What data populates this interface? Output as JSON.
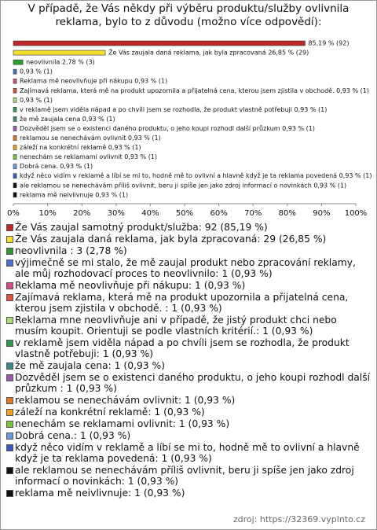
{
  "chart_data": {
    "type": "hbar",
    "title": "V případě, že Vás někdy při výběru produktu/služby ovlivnila reklama, bylo to z důvodu (možno více odpovědí):",
    "categories": [
      "Že Vás zaujal samotný produkt/služba: 92 (85,19 %)",
      "Že Vás zaujala daná reklama, jak byla zpracovaná: 29 (26,85 %)",
      "neovlivnila : 3 (2,78 %)",
      "výjimečně se mi stalo, že mě zaujal produkt nebo zpracování reklamy, ale můj rozhodovací proces to neovlivnilo: 1 (0,93 %)",
      "Reklama mě neovlivňuje při nákupu: 1 (0,93 %)",
      "Zajímavá reklama, která mě na produkt upozornila a přijatelná cena, kterou jsem zjistila v obchodě. : 1 (0,93 %)",
      "Reklama mne neovlivňuje ani v případě, že jistý produkt chci nebo musím koupit. Orientuji se podle vlastních kritérií.: 1 (0,93 %)",
      "v reklamě jsem viděla nápad a po chvíli jsem se rozhodla, že produkt vlastně potřebuji: 1 (0,93 %)",
      "že mě zaujala cena: 1 (0,93 %)",
      "Dozvěděl jsem se o existenci daného produktu, o jeho koupi rozhodl další průzkum : 1 (0,93 %)",
      "reklamou se nenechávám ovlivnit: 1 (0,93 %)",
      "záleží na konkrétní reklamě: 1 (0,93 %)",
      "nenechám se reklamami ovlivnit: 1 (0,93 %)",
      "Dobrá cena.: 1 (0,93 %)",
      "když něco vidím v reklamě a líbí se mi to, hodně mě to ovlivní a hlavně když je ta reklama povedená: 1 (0,93 %)",
      "ale reklamou se nenechávám příliš ovlivnit, beru ji spíše jen jako zdroj informací o novinkách: 1 (0,93 %)",
      "reklama mě neivlivnuje: 1 (0,93 %)"
    ],
    "values": [
      85.19,
      26.85,
      2.78,
      0.93,
      0.93,
      0.93,
      0.93,
      0.93,
      0.93,
      0.93,
      0.93,
      0.93,
      0.93,
      0.93,
      0.93,
      0.93,
      0.93
    ],
    "value_labels": [
      "85,19 % (92)",
      "Že Vás zaujala daná reklama, jak byla zpracovaná 26,85 % (29)",
      "neovlivnila  2,78 % (3)",
      "0,93 % (1)",
      "Reklama mě neovlivňuje při nákupu 0,93 % (1)",
      "Zajímavá reklama, která mě na produkt upozornila a přijatelná cena, kterou jsem zjistila v obchodě.  0,93 % (1)",
      "0,93 % (1)",
      "v reklamě jsem viděla nápad a po chvíli jsem se rozhodla, že produkt vlastně potřebuji 0,93 % (1)",
      "že mě zaujala cena 0,93 % (1)",
      "Dozvěděl jsem se o existenci daného produktu, o jeho koupi rozhodl další průzkum  0,93 % (1)",
      "reklamou se nenechávám ovlivnit 0,93 % (1)",
      "záleží na konkrétní reklamě 0,93 % (1)",
      "nenechám se reklamami ovlivnit 0,93 % (1)",
      "Dobrá cena.  0,93 % (1)",
      "když něco vidím v reklamě a líbí se mi to, hodně mě to ovlivní a hlavně když je ta reklama povedená 0,93 % (1)",
      "ale reklamou se nenechávám příliš ovlivnit, beru ji spíše jen jako zdroj informací o novinkách 0,93 % (1)",
      "reklama mě neivlivnuje 0,93 % (1)"
    ],
    "colors": [
      "#c0282a",
      "#f4e02c",
      "#2f9e2f",
      "#4a6ed0",
      "#d64a8a",
      "#e0503a",
      "#a8dc78",
      "#2e9a4a",
      "#3a8a8a",
      "#9a5ab0",
      "#e07a20",
      "#f0a020",
      "#7ac83a",
      "#6a9ae0",
      "#3a5ac0",
      "#111111",
      "#111111"
    ],
    "xlim": [
      0,
      100
    ],
    "xticks": [
      {
        "value": 0,
        "label": "0%"
      },
      {
        "value": 10,
        "label": "10%"
      },
      {
        "value": 20,
        "label": "20%"
      },
      {
        "value": 30,
        "label": "30%"
      },
      {
        "value": 40,
        "label": "40%"
      },
      {
        "value": 50,
        "label": "50%"
      },
      {
        "value": 60,
        "label": "60%"
      },
      {
        "value": 70,
        "label": "70%"
      },
      {
        "value": 80,
        "label": "80%"
      },
      {
        "value": 90,
        "label": "90%"
      },
      {
        "value": 100,
        "label": "100%"
      }
    ],
    "source": "zdroj: https://32369.vyplnto.cz"
  }
}
